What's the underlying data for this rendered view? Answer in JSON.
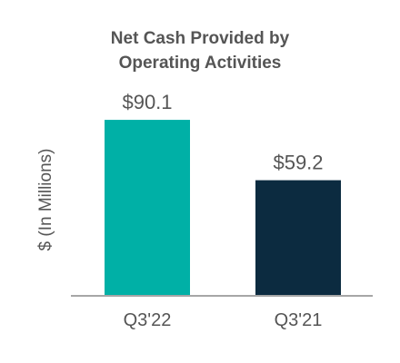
{
  "chart_data": {
    "type": "bar",
    "title_lines": [
      "Net Cash Provided by",
      "Operating Activities"
    ],
    "ylabel": "$ (In Millions)",
    "xlabel": "",
    "categories": [
      "Q3'22",
      "Q3'21"
    ],
    "values": [
      90.1,
      59.2
    ],
    "data_labels": [
      "$90.1",
      "$59.2"
    ],
    "bar_colors": [
      "#00B0A6",
      "#0C2B40"
    ],
    "axis_color": "#A6A6A6",
    "ylim": [
      0,
      105
    ],
    "grid": false,
    "legend": "none"
  }
}
